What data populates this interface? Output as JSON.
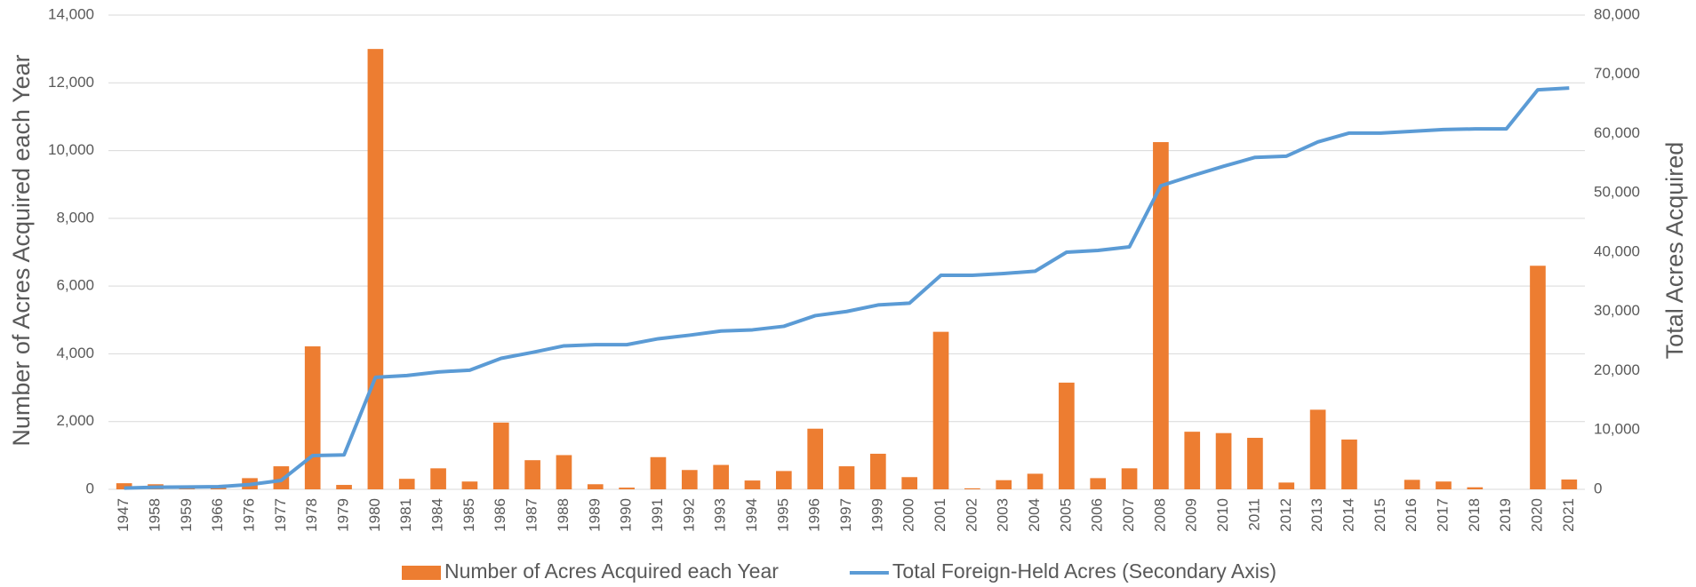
{
  "chart_data": {
    "type": "bar-line",
    "y_label": "Number of Acres Acquired each Year",
    "y2_label": "Total Acres Acquired",
    "categories": [
      "1947",
      "1958",
      "1959",
      "1966",
      "1976",
      "1977",
      "1978",
      "1979",
      "1980",
      "1981",
      "1984",
      "1985",
      "1986",
      "1987",
      "1988",
      "1989",
      "1990",
      "1991",
      "1992",
      "1993",
      "1994",
      "1995",
      "1996",
      "1997",
      "1999",
      "2000",
      "2001",
      "2002",
      "2003",
      "2004",
      "2005",
      "2006",
      "2007",
      "2008",
      "2009",
      "2010",
      "2011",
      "2012",
      "2013",
      "2014",
      "2015",
      "2016",
      "2017",
      "2018",
      "2019",
      "2020",
      "2021"
    ],
    "series": [
      {
        "name": "Number of Acres Acquired each Year",
        "type": "bar",
        "color": "#ed7d31",
        "axis": "y",
        "values": [
          180,
          150,
          30,
          50,
          330,
          680,
          4220,
          130,
          13000,
          310,
          620,
          230,
          1970,
          860,
          1010,
          150,
          50,
          950,
          570,
          720,
          260,
          540,
          1790,
          680,
          1050,
          360,
          4650,
          30,
          270,
          460,
          3150,
          330,
          620,
          10250,
          1700,
          1660,
          1520,
          200,
          2350,
          1470,
          0,
          280,
          230,
          60,
          0,
          6600,
          290
        ]
      },
      {
        "name": "Total Foreign-Held Acres (Secondary Axis)",
        "type": "line",
        "color": "#5b9bd5",
        "axis": "y2",
        "values": [
          200,
          350,
          400,
          450,
          800,
          1500,
          5700,
          5800,
          18900,
          19200,
          19800,
          20100,
          22100,
          23100,
          24200,
          24400,
          24400,
          25400,
          26000,
          26700,
          26900,
          27500,
          29300,
          30000,
          31100,
          31400,
          36100,
          36100,
          36400,
          36800,
          40000,
          40300,
          40900,
          51200,
          52900,
          54500,
          56000,
          56200,
          58600,
          60100,
          60100,
          60400,
          60700,
          60800,
          60800,
          67400,
          67700
        ]
      }
    ],
    "ylim": [
      0,
      14000
    ],
    "yticks": [
      0,
      {
        "value": 2000,
        "label": "2,000"
      },
      {
        "value": 4000,
        "label": "4,000"
      },
      {
        "value": 6000,
        "label": "6,000"
      },
      {
        "value": 8000,
        "label": "8,000"
      },
      {
        "value": 10000,
        "label": "10,000"
      },
      {
        "value": 12000,
        "label": "12,000"
      },
      {
        "value": 14000,
        "label": "14,000"
      }
    ],
    "y2lim": [
      0,
      80000
    ],
    "y2ticks": [
      0,
      {
        "value": 10000,
        "label": "10,000"
      },
      {
        "value": 20000,
        "label": "20,000"
      },
      {
        "value": 30000,
        "label": "30,000"
      },
      {
        "value": 40000,
        "label": "40,000"
      },
      {
        "value": 50000,
        "label": "50,000"
      },
      {
        "value": 60000,
        "label": "60,000"
      },
      {
        "value": 70000,
        "label": "70,000"
      },
      {
        "value": 80000,
        "label": "80,000"
      }
    ],
    "grid": true,
    "legend": "bottom"
  }
}
